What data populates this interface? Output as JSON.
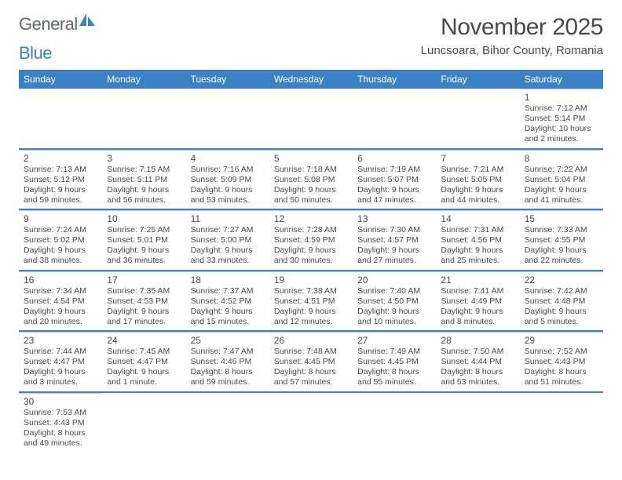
{
  "logo": {
    "text_general": "General",
    "text_blue": "Blue",
    "color_gray": "#5f6a72",
    "color_blue": "#3b82c4"
  },
  "header": {
    "month_title": "November 2025",
    "location": "Luncsoara, Bihor County, Romania"
  },
  "colors": {
    "header_bg": "#3b82c4",
    "row_divider": "#3b82c4",
    "cell_top": "#c9c9c9",
    "text": "#4a4a4a"
  },
  "weekdays": [
    "Sunday",
    "Monday",
    "Tuesday",
    "Wednesday",
    "Thursday",
    "Friday",
    "Saturday"
  ],
  "weeks": [
    [
      null,
      null,
      null,
      null,
      null,
      null,
      {
        "d": "1",
        "sr": "7:12 AM",
        "ss": "5:14 PM",
        "dl": "10 hours and 2 minutes."
      }
    ],
    [
      {
        "d": "2",
        "sr": "7:13 AM",
        "ss": "5:12 PM",
        "dl": "9 hours and 59 minutes."
      },
      {
        "d": "3",
        "sr": "7:15 AM",
        "ss": "5:11 PM",
        "dl": "9 hours and 56 minutes."
      },
      {
        "d": "4",
        "sr": "7:16 AM",
        "ss": "5:09 PM",
        "dl": "9 hours and 53 minutes."
      },
      {
        "d": "5",
        "sr": "7:18 AM",
        "ss": "5:08 PM",
        "dl": "9 hours and 50 minutes."
      },
      {
        "d": "6",
        "sr": "7:19 AM",
        "ss": "5:07 PM",
        "dl": "9 hours and 47 minutes."
      },
      {
        "d": "7",
        "sr": "7:21 AM",
        "ss": "5:05 PM",
        "dl": "9 hours and 44 minutes."
      },
      {
        "d": "8",
        "sr": "7:22 AM",
        "ss": "5:04 PM",
        "dl": "9 hours and 41 minutes."
      }
    ],
    [
      {
        "d": "9",
        "sr": "7:24 AM",
        "ss": "5:02 PM",
        "dl": "9 hours and 38 minutes."
      },
      {
        "d": "10",
        "sr": "7:25 AM",
        "ss": "5:01 PM",
        "dl": "9 hours and 36 minutes."
      },
      {
        "d": "11",
        "sr": "7:27 AM",
        "ss": "5:00 PM",
        "dl": "9 hours and 33 minutes."
      },
      {
        "d": "12",
        "sr": "7:28 AM",
        "ss": "4:59 PM",
        "dl": "9 hours and 30 minutes."
      },
      {
        "d": "13",
        "sr": "7:30 AM",
        "ss": "4:57 PM",
        "dl": "9 hours and 27 minutes."
      },
      {
        "d": "14",
        "sr": "7:31 AM",
        "ss": "4:56 PM",
        "dl": "9 hours and 25 minutes."
      },
      {
        "d": "15",
        "sr": "7:33 AM",
        "ss": "4:55 PM",
        "dl": "9 hours and 22 minutes."
      }
    ],
    [
      {
        "d": "16",
        "sr": "7:34 AM",
        "ss": "4:54 PM",
        "dl": "9 hours and 20 minutes."
      },
      {
        "d": "17",
        "sr": "7:35 AM",
        "ss": "4:53 PM",
        "dl": "9 hours and 17 minutes."
      },
      {
        "d": "18",
        "sr": "7:37 AM",
        "ss": "4:52 PM",
        "dl": "9 hours and 15 minutes."
      },
      {
        "d": "19",
        "sr": "7:38 AM",
        "ss": "4:51 PM",
        "dl": "9 hours and 12 minutes."
      },
      {
        "d": "20",
        "sr": "7:40 AM",
        "ss": "4:50 PM",
        "dl": "9 hours and 10 minutes."
      },
      {
        "d": "21",
        "sr": "7:41 AM",
        "ss": "4:49 PM",
        "dl": "9 hours and 8 minutes."
      },
      {
        "d": "22",
        "sr": "7:42 AM",
        "ss": "4:48 PM",
        "dl": "9 hours and 5 minutes."
      }
    ],
    [
      {
        "d": "23",
        "sr": "7:44 AM",
        "ss": "4:47 PM",
        "dl": "9 hours and 3 minutes."
      },
      {
        "d": "24",
        "sr": "7:45 AM",
        "ss": "4:47 PM",
        "dl": "9 hours and 1 minute."
      },
      {
        "d": "25",
        "sr": "7:47 AM",
        "ss": "4:46 PM",
        "dl": "8 hours and 59 minutes."
      },
      {
        "d": "26",
        "sr": "7:48 AM",
        "ss": "4:45 PM",
        "dl": "8 hours and 57 minutes."
      },
      {
        "d": "27",
        "sr": "7:49 AM",
        "ss": "4:45 PM",
        "dl": "8 hours and 55 minutes."
      },
      {
        "d": "28",
        "sr": "7:50 AM",
        "ss": "4:44 PM",
        "dl": "8 hours and 53 minutes."
      },
      {
        "d": "29",
        "sr": "7:52 AM",
        "ss": "4:43 PM",
        "dl": "8 hours and 51 minutes."
      }
    ],
    [
      {
        "d": "30",
        "sr": "7:53 AM",
        "ss": "4:43 PM",
        "dl": "8 hours and 49 minutes."
      },
      null,
      null,
      null,
      null,
      null,
      null
    ]
  ],
  "labels": {
    "sunrise": "Sunrise: ",
    "sunset": "Sunset: ",
    "daylight": "Daylight: "
  }
}
